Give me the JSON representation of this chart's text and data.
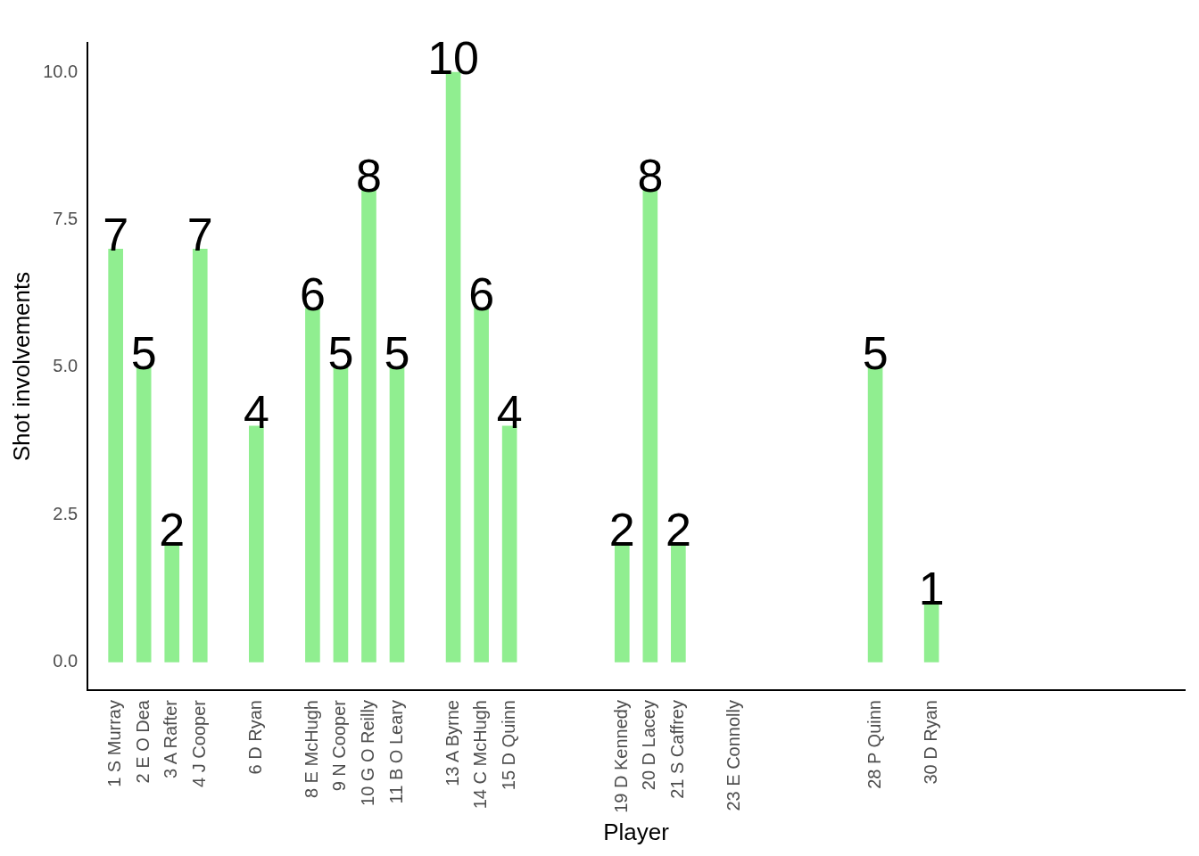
{
  "chart_data": {
    "type": "bar",
    "xlabel": "Player",
    "ylabel": "Shot involvements",
    "x": [
      1,
      2,
      3,
      4,
      6,
      8,
      9,
      10,
      11,
      13,
      14,
      15,
      19,
      20,
      21,
      28,
      30
    ],
    "values": [
      7,
      5,
      2,
      7,
      4,
      6,
      5,
      8,
      5,
      10,
      6,
      4,
      2,
      8,
      2,
      5,
      1
    ],
    "color": "#90ee90",
    "xlim": [
      0,
      39
    ],
    "xticks": [
      {
        "value": 1,
        "label": "1 S Murray"
      },
      {
        "value": 2,
        "label": "2 E O Dea"
      },
      {
        "value": 3,
        "label": "3 A Rafter"
      },
      {
        "value": 4,
        "label": "4 J Cooper"
      },
      {
        "value": 6,
        "label": "6 D Ryan"
      },
      {
        "value": 8,
        "label": "8 E McHugh"
      },
      {
        "value": 9,
        "label": "9 N Cooper"
      },
      {
        "value": 10,
        "label": "10 G O Reilly"
      },
      {
        "value": 11,
        "label": "11 B O Leary"
      },
      {
        "value": 13,
        "label": "13 A Byrne"
      },
      {
        "value": 14,
        "label": "14 C McHugh"
      },
      {
        "value": 15,
        "label": "15 D Quinn"
      },
      {
        "value": 19,
        "label": "19 D Kennedy"
      },
      {
        "value": 20,
        "label": "20 D Lacey"
      },
      {
        "value": 21,
        "label": "21 S Caffrey"
      },
      {
        "value": 23,
        "label": "23 E Connolly"
      },
      {
        "value": 28,
        "label": "28 P Quinn"
      },
      {
        "value": 30,
        "label": "30 D Ryan"
      }
    ],
    "ylim": [
      -0.48,
      10.5
    ],
    "yticks": [
      {
        "value": 0,
        "label": "0.0"
      },
      {
        "value": 2.5,
        "label": "2.5"
      },
      {
        "value": 5,
        "label": "5.0"
      },
      {
        "value": 7.5,
        "label": "7.5"
      },
      {
        "value": 10,
        "label": "10.0"
      }
    ],
    "data_labels": true,
    "grid": false,
    "legend": false
  }
}
